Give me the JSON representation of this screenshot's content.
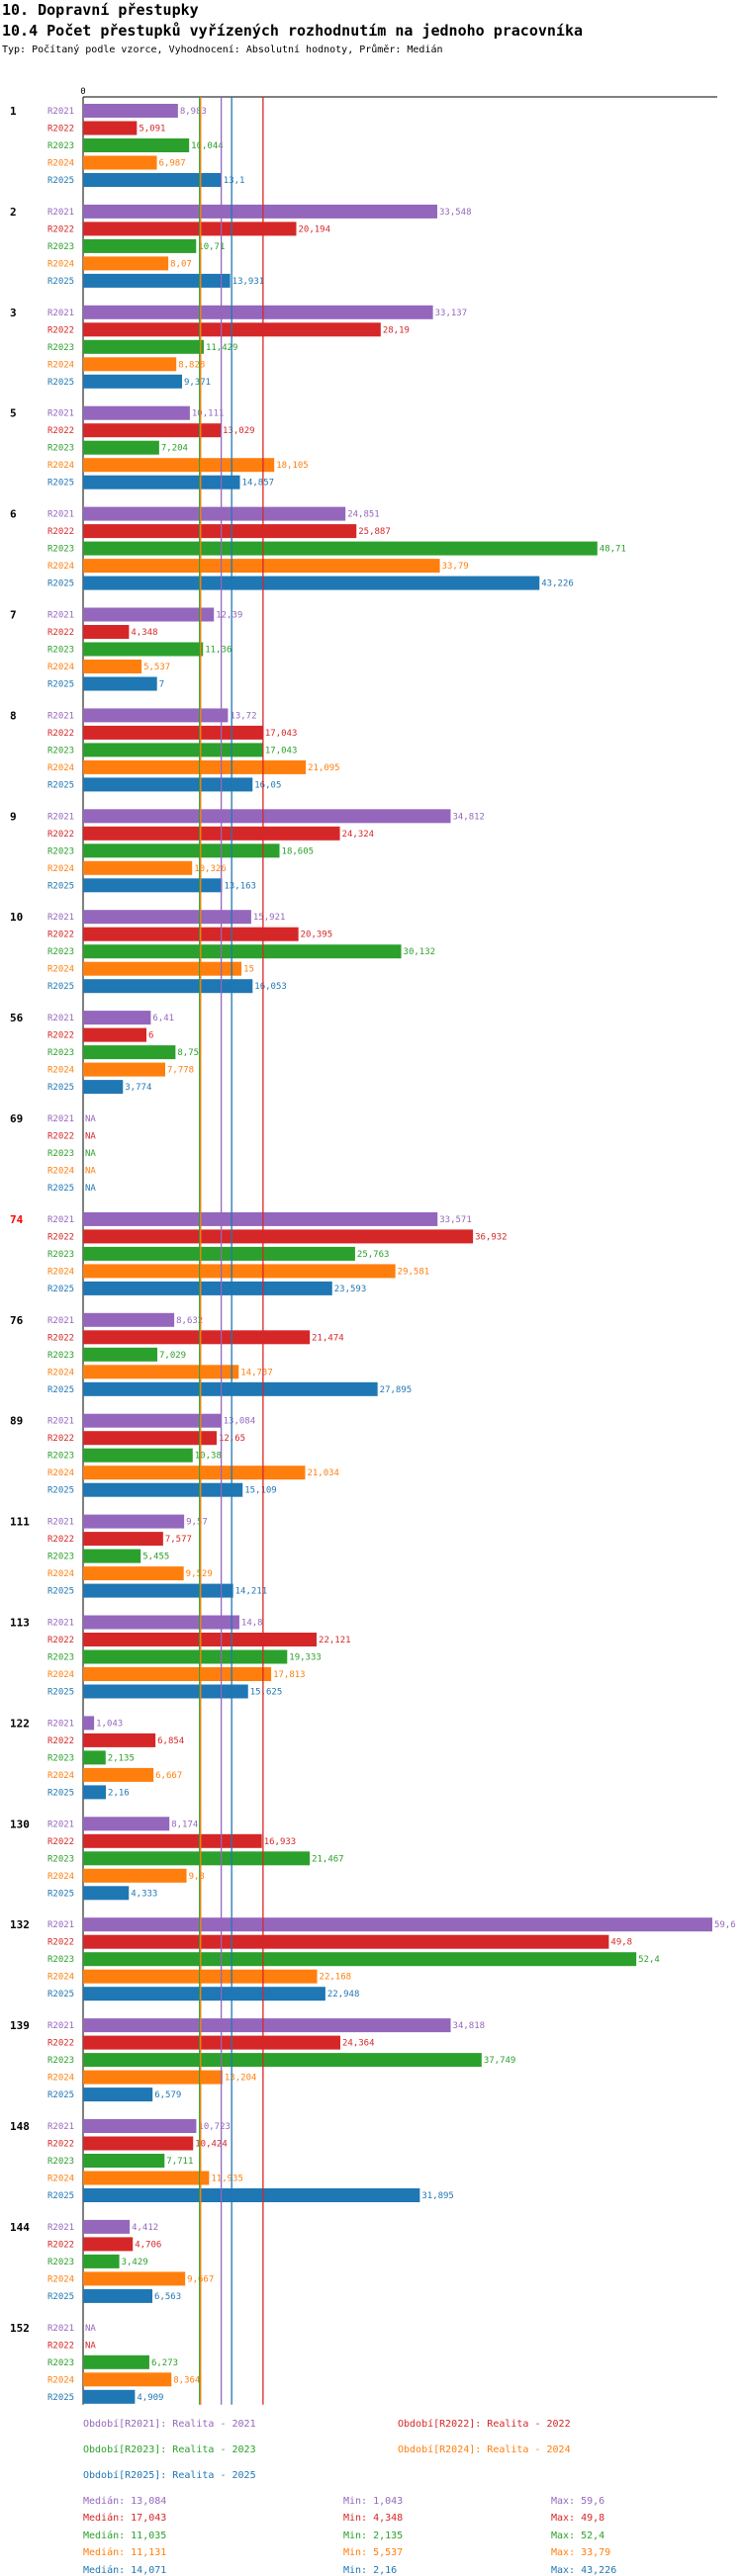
{
  "heading": {
    "title": "10. Dopravní přestupky",
    "subtitle": "10.4 Počet přestupků vyřízených rozhodnutím na jednoho pracovníka",
    "info": "Typ: Počítaný podle vzorce, Vyhodnocení: Absolutní hodnoty, Průměr: Medián"
  },
  "chart_data": {
    "type": "bar",
    "orientation": "horizontal",
    "title": "10.4 Počet přestupků vyřízených rozhodnutím na jednoho pracovníka",
    "xlim": [
      0,
      59.6
    ],
    "x_tick_labels": [
      "0"
    ],
    "series_names": [
      "R2021",
      "R2022",
      "R2023",
      "R2024",
      "R2025"
    ],
    "colors": {
      "R2021": "#9467bd",
      "R2022": "#d62728",
      "R2023": "#2ca02c",
      "R2024": "#ff7f0e",
      "R2025": "#1f77b4"
    },
    "highlight_color": "#ff0000",
    "median_lines": {
      "R2021": 13.084,
      "R2022": 17.043,
      "R2023": 11.035,
      "R2024": 11.131,
      "R2025": 14.071
    },
    "groups": [
      {
        "label": "1",
        "highlight": false,
        "values": [
          8.983,
          5.091,
          10.044,
          6.987,
          13.1
        ],
        "labels": [
          "8,983",
          "5,091",
          "10,044",
          "6,987",
          "13,1"
        ]
      },
      {
        "label": "2",
        "highlight": false,
        "values": [
          33.548,
          20.194,
          10.71,
          8.07,
          13.931
        ],
        "labels": [
          "33,548",
          "20,194",
          "10,71",
          "8,07",
          "13,931"
        ]
      },
      {
        "label": "3",
        "highlight": false,
        "values": [
          33.137,
          28.19,
          11.429,
          8.828,
          9.371
        ],
        "labels": [
          "33,137",
          "28,19",
          "11,429",
          "8,828",
          "9,371"
        ]
      },
      {
        "label": "5",
        "highlight": false,
        "values": [
          10.111,
          13.029,
          7.204,
          18.105,
          14.857
        ],
        "labels": [
          "10,111",
          "13,029",
          "7,204",
          "18,105",
          "14,857"
        ]
      },
      {
        "label": "6",
        "highlight": false,
        "values": [
          24.851,
          25.887,
          48.71,
          33.79,
          43.226
        ],
        "labels": [
          "24,851",
          "25,887",
          "48,71",
          "33,79",
          "43,226"
        ]
      },
      {
        "label": "7",
        "highlight": false,
        "values": [
          12.39,
          4.348,
          11.36,
          5.537,
          7
        ],
        "labels": [
          "12,39",
          "4,348",
          "11,36",
          "5,537",
          "7"
        ]
      },
      {
        "label": "8",
        "highlight": false,
        "values": [
          13.72,
          17.043,
          17.043,
          21.095,
          16.05
        ],
        "labels": [
          "13,72",
          "17,043",
          "17,043",
          "21,095",
          "16,05"
        ]
      },
      {
        "label": "9",
        "highlight": false,
        "values": [
          34.812,
          24.324,
          18.605,
          10.326,
          13.163
        ],
        "labels": [
          "34,812",
          "24,324",
          "18,605",
          "10,326",
          "13,163"
        ]
      },
      {
        "label": "10",
        "highlight": false,
        "values": [
          15.921,
          20.395,
          30.132,
          15,
          16.053
        ],
        "labels": [
          "15,921",
          "20,395",
          "30,132",
          "15",
          "16,053"
        ]
      },
      {
        "label": "56",
        "highlight": false,
        "values": [
          6.41,
          6,
          8.75,
          7.778,
          3.774
        ],
        "labels": [
          "6,41",
          "6",
          "8,75",
          "7,778",
          "3,774"
        ]
      },
      {
        "label": "69",
        "highlight": false,
        "values": [
          null,
          null,
          null,
          null,
          null
        ],
        "labels": [
          "NA",
          "NA",
          "NA",
          "NA",
          "NA"
        ]
      },
      {
        "label": "74",
        "highlight": true,
        "values": [
          33.571,
          36.932,
          25.763,
          29.581,
          23.593
        ],
        "labels": [
          "33,571",
          "36,932",
          "25,763",
          "29,581",
          "23,593"
        ]
      },
      {
        "label": "76",
        "highlight": false,
        "values": [
          8.632,
          21.474,
          7.029,
          14.737,
          27.895
        ],
        "labels": [
          "8,632",
          "21,474",
          "7,029",
          "14,737",
          "27,895"
        ]
      },
      {
        "label": "89",
        "highlight": false,
        "values": [
          13.084,
          12.65,
          10.38,
          21.034,
          15.109
        ],
        "labels": [
          "13,084",
          "12,65",
          "10,38",
          "21,034",
          "15,109"
        ]
      },
      {
        "label": "111",
        "highlight": false,
        "values": [
          9.57,
          7.577,
          5.455,
          9.529,
          14.211
        ],
        "labels": [
          "9,57",
          "7,577",
          "5,455",
          "9,529",
          "14,211"
        ]
      },
      {
        "label": "113",
        "highlight": false,
        "values": [
          14.8,
          22.121,
          19.333,
          17.813,
          15.625
        ],
        "labels": [
          "14,8",
          "22,121",
          "19,333",
          "17,813",
          "15,625"
        ]
      },
      {
        "label": "122",
        "highlight": false,
        "values": [
          1.043,
          6.854,
          2.135,
          6.667,
          2.16
        ],
        "labels": [
          "1,043",
          "6,854",
          "2,135",
          "6,667",
          "2,16"
        ]
      },
      {
        "label": "130",
        "highlight": false,
        "values": [
          8.174,
          16.933,
          21.467,
          9.8,
          4.333
        ],
        "labels": [
          "8,174",
          "16,933",
          "21,467",
          "9,8",
          "4,333"
        ]
      },
      {
        "label": "132",
        "highlight": false,
        "values": [
          59.6,
          49.8,
          52.4,
          22.168,
          22.948
        ],
        "labels": [
          "59,6",
          "49,8",
          "52,4",
          "22,168",
          "22,948"
        ]
      },
      {
        "label": "139",
        "highlight": false,
        "values": [
          34.818,
          24.364,
          37.749,
          13.204,
          6.579
        ],
        "labels": [
          "34,818",
          "24,364",
          "37,749",
          "13,204",
          "6,579"
        ]
      },
      {
        "label": "148",
        "highlight": false,
        "values": [
          10.723,
          10.424,
          7.711,
          11.935,
          31.895
        ],
        "labels": [
          "10,723",
          "10,424",
          "7,711",
          "11,935",
          "31,895"
        ]
      },
      {
        "label": "144",
        "highlight": false,
        "values": [
          4.412,
          4.706,
          3.429,
          9.667,
          6.563
        ],
        "labels": [
          "4,412",
          "4,706",
          "3,429",
          "9,667",
          "6,563"
        ]
      },
      {
        "label": "152",
        "highlight": false,
        "values": [
          null,
          null,
          6.273,
          8.364,
          4.909
        ],
        "labels": [
          "NA",
          "NA",
          "6,273",
          "8,364",
          "4,909"
        ]
      }
    ]
  },
  "legend": {
    "entries": [
      {
        "text": "Období[R2021]: Realita - 2021",
        "color": "#9467bd"
      },
      {
        "text": "Období[R2022]: Realita - 2022",
        "color": "#d62728"
      },
      {
        "text": "Období[R2023]: Realita - 2023",
        "color": "#2ca02c"
      },
      {
        "text": "Období[R2024]: Realita - 2024",
        "color": "#ff7f0e"
      },
      {
        "text": "Období[R2025]: Realita - 2025",
        "color": "#1f77b4"
      }
    ]
  },
  "stats": [
    {
      "median": "Medián: 13,084",
      "min": "Min: 1,043",
      "max": "Max: 59,6",
      "color": "#9467bd"
    },
    {
      "median": "Medián: 17,043",
      "min": "Min: 4,348",
      "max": "Max: 49,8",
      "color": "#d62728"
    },
    {
      "median": "Medián: 11,035",
      "min": "Min: 2,135",
      "max": "Max: 52,4",
      "color": "#2ca02c"
    },
    {
      "median": "Medián: 11,131",
      "min": "Min: 5,537",
      "max": "Max: 33,79",
      "color": "#ff7f0e"
    },
    {
      "median": "Medián: 14,071",
      "min": "Min: 2,16",
      "max": "Max: 43,226",
      "color": "#1f77b4"
    }
  ]
}
